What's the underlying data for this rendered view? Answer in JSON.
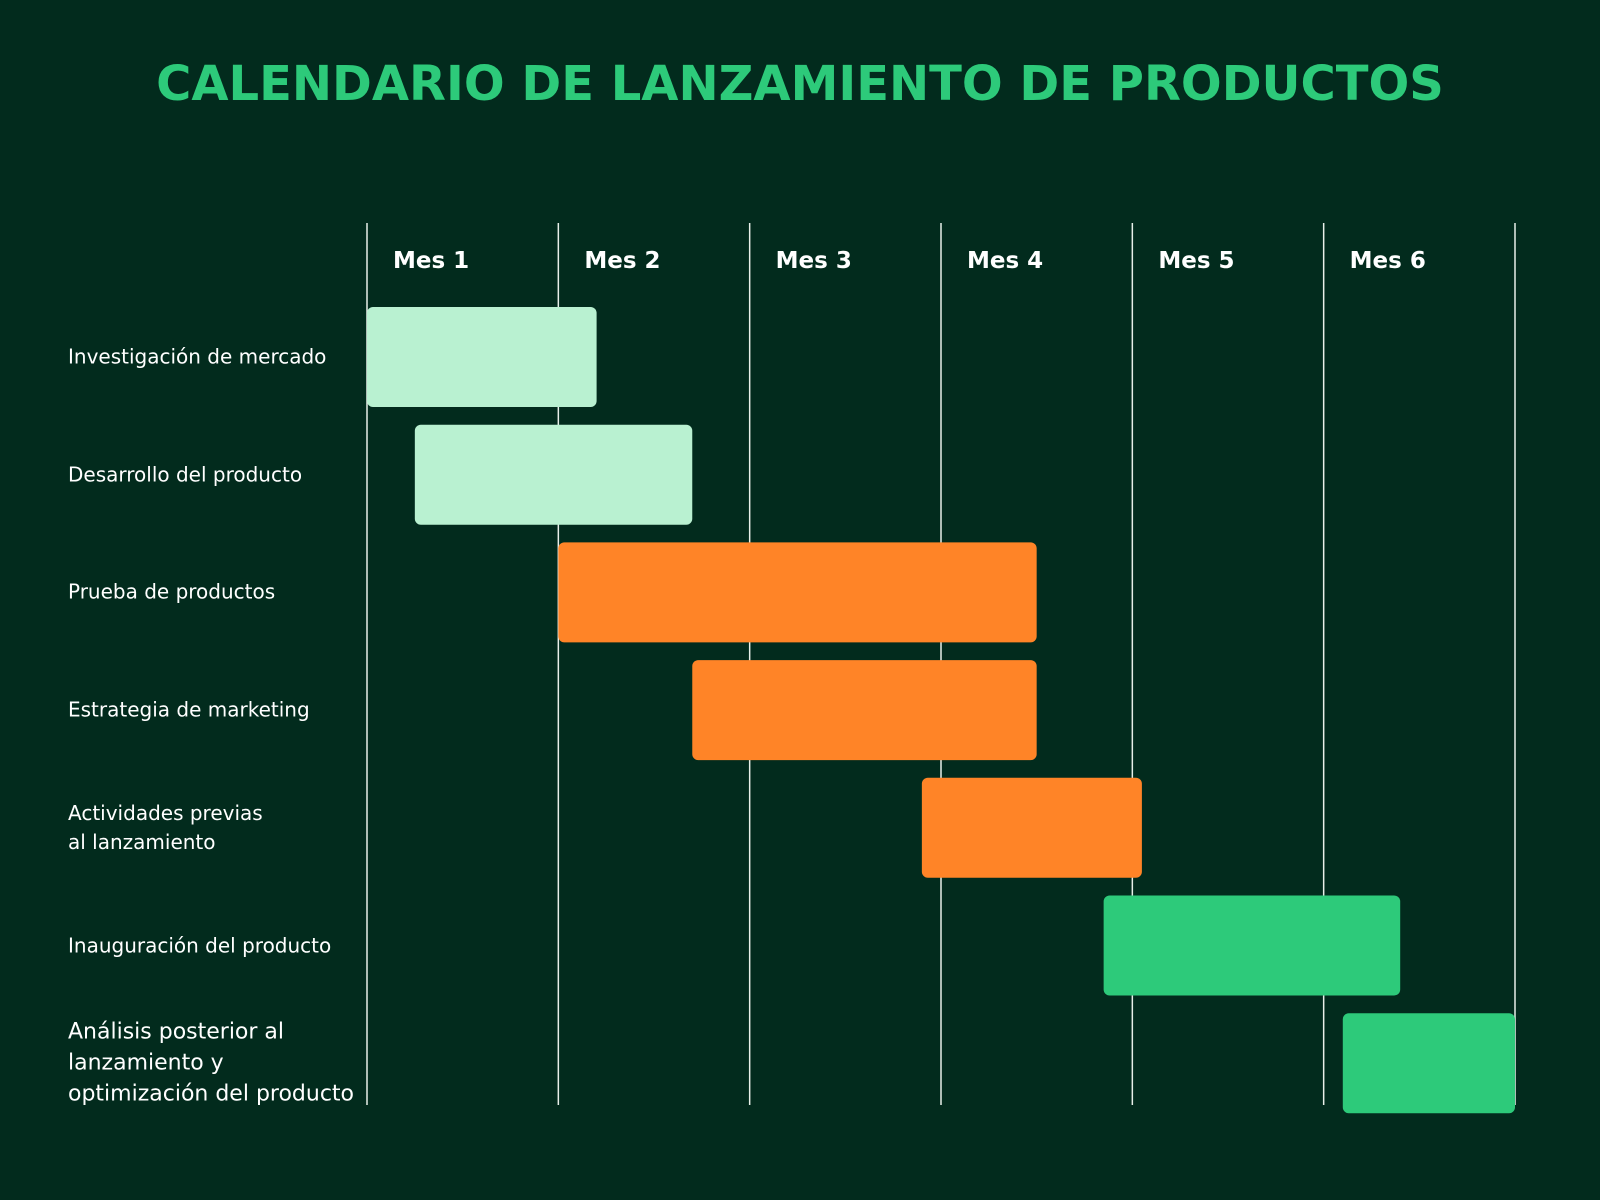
{
  "chart_data": {
    "type": "gantt",
    "title": "CALENDARIO DE LANZAMIENTO DE PRODUCTOS",
    "categories": [
      "Mes 1",
      "Mes 2",
      "Mes 3",
      "Mes 4",
      "Mes 5",
      "Mes 6"
    ],
    "xlim": [
      0,
      6
    ],
    "xticks": [
      0,
      1,
      2,
      3,
      4,
      5,
      6
    ],
    "grid": true,
    "tasks": [
      {
        "name": "Investigación de mercado",
        "start": 0,
        "end": 1.2,
        "color": "#b9f1d1"
      },
      {
        "name": "Desarrollo del producto",
        "start": 0.25,
        "end": 1.7,
        "color": "#b9f1d1"
      },
      {
        "name": "Prueba de productos",
        "start": 1,
        "end": 3.5,
        "color": "#ff8427"
      },
      {
        "name": "Estrategia de marketing",
        "start": 1.7,
        "end": 3.5,
        "color": "#ff8427"
      },
      {
        "name": "Actividades previas\n al lanzamiento",
        "start": 2.9,
        "end": 4.05,
        "color": "#ff8427"
      },
      {
        "name": "Inauguración del producto",
        "start": 3.85,
        "end": 5.4,
        "color": "#2dca7a"
      },
      {
        "name": "Análisis posterior al lanzamiento y optimización del producto",
        "start": 5.1,
        "end": 6,
        "color": "#2dca7a"
      }
    ]
  }
}
